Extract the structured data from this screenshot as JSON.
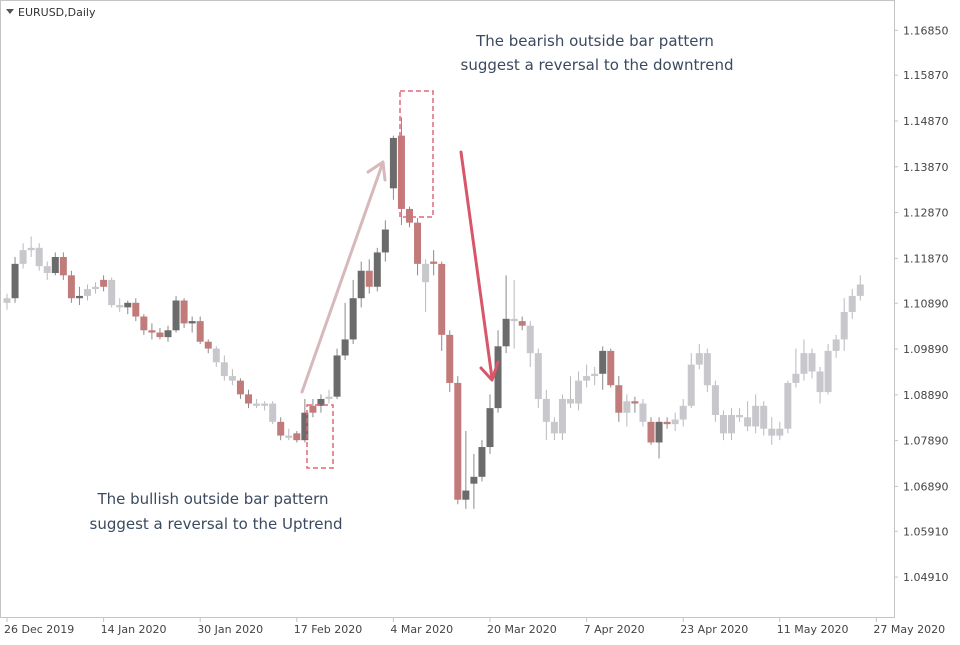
{
  "symbol_label": "EURUSD,Daily",
  "colors": {
    "background": "#ffffff",
    "border": "#c4c4c4",
    "axis_text": "#444444",
    "bull_dark": "#6b6b6b",
    "bear_red": "#c27b7b",
    "faded": "#c8c8cc",
    "wick": "#8a8a8a",
    "highlight_box": "#e0697a",
    "arrow_up": "#d7b8bb",
    "arrow_down": "#d9566a",
    "annotation_text": "#3b4a60"
  },
  "annotations": {
    "bullish_line1": "The bullish outside bar pattern",
    "bullish_line2": "suggest a reversal to the Uptrend",
    "bearish_line1": "The bearish outside bar pattern",
    "bearish_line2": "suggest a reversal to the downtrend"
  },
  "chart_data": {
    "type": "candlestick",
    "title": "EURUSD,Daily",
    "ylim": [
      1.0441,
      1.1725
    ],
    "y_ticks": [
      "1.16850",
      "1.15870",
      "1.14870",
      "1.13870",
      "1.12870",
      "1.11870",
      "1.10890",
      "1.09890",
      "1.08890",
      "1.07890",
      "1.06890",
      "1.05910",
      "1.04910"
    ],
    "x_ticks": [
      "26 Dec 2019",
      "14 Jan 2020",
      "30 Jan 2020",
      "17 Feb 2020",
      "4 Mar 2020",
      "20 Mar 2020",
      "7 Apr 2020",
      "23 Apr 2020",
      "11 May 2020",
      "27 May 2020"
    ],
    "x_tick_index": [
      0,
      12,
      24,
      36,
      48,
      60,
      72,
      84,
      96,
      108
    ],
    "grid": false,
    "candles": [
      {
        "o": 1.109,
        "h": 1.111,
        "l": 1.1075,
        "c": 1.11,
        "s": "faded"
      },
      {
        "o": 1.11,
        "h": 1.119,
        "l": 1.109,
        "c": 1.1175,
        "s": "dark"
      },
      {
        "o": 1.1175,
        "h": 1.122,
        "l": 1.1165,
        "c": 1.1205,
        "s": "faded"
      },
      {
        "o": 1.1205,
        "h": 1.1235,
        "l": 1.119,
        "c": 1.121,
        "s": "faded"
      },
      {
        "o": 1.121,
        "h": 1.122,
        "l": 1.116,
        "c": 1.117,
        "s": "faded"
      },
      {
        "o": 1.117,
        "h": 1.118,
        "l": 1.114,
        "c": 1.1155,
        "s": "faded"
      },
      {
        "o": 1.1155,
        "h": 1.12,
        "l": 1.115,
        "c": 1.119,
        "s": "dark"
      },
      {
        "o": 1.119,
        "h": 1.12,
        "l": 1.114,
        "c": 1.115,
        "s": "red"
      },
      {
        "o": 1.115,
        "h": 1.116,
        "l": 1.109,
        "c": 1.11,
        "s": "red"
      },
      {
        "o": 1.11,
        "h": 1.1125,
        "l": 1.1085,
        "c": 1.1105,
        "s": "dark"
      },
      {
        "o": 1.1105,
        "h": 1.113,
        "l": 1.1095,
        "c": 1.112,
        "s": "faded"
      },
      {
        "o": 1.112,
        "h": 1.1135,
        "l": 1.111,
        "c": 1.1125,
        "s": "faded"
      },
      {
        "o": 1.1125,
        "h": 1.115,
        "l": 1.1115,
        "c": 1.114,
        "s": "red"
      },
      {
        "o": 1.114,
        "h": 1.1145,
        "l": 1.108,
        "c": 1.1085,
        "s": "faded"
      },
      {
        "o": 1.1085,
        "h": 1.11,
        "l": 1.107,
        "c": 1.108,
        "s": "faded"
      },
      {
        "o": 1.108,
        "h": 1.1095,
        "l": 1.1065,
        "c": 1.109,
        "s": "dark"
      },
      {
        "o": 1.109,
        "h": 1.11,
        "l": 1.105,
        "c": 1.106,
        "s": "red"
      },
      {
        "o": 1.106,
        "h": 1.1065,
        "l": 1.102,
        "c": 1.103,
        "s": "red"
      },
      {
        "o": 1.103,
        "h": 1.1045,
        "l": 1.101,
        "c": 1.1025,
        "s": "red"
      },
      {
        "o": 1.1025,
        "h": 1.1035,
        "l": 1.101,
        "c": 1.1015,
        "s": "red"
      },
      {
        "o": 1.1015,
        "h": 1.104,
        "l": 1.1005,
        "c": 1.103,
        "s": "dark"
      },
      {
        "o": 1.103,
        "h": 1.1105,
        "l": 1.1025,
        "c": 1.1095,
        "s": "dark"
      },
      {
        "o": 1.1095,
        "h": 1.11,
        "l": 1.1035,
        "c": 1.1045,
        "s": "red"
      },
      {
        "o": 1.1045,
        "h": 1.106,
        "l": 1.1025,
        "c": 1.105,
        "s": "dark"
      },
      {
        "o": 1.105,
        "h": 1.106,
        "l": 1.1,
        "c": 1.1005,
        "s": "red"
      },
      {
        "o": 1.1005,
        "h": 1.101,
        "l": 1.098,
        "c": 1.099,
        "s": "red"
      },
      {
        "o": 1.099,
        "h": 1.0995,
        "l": 1.095,
        "c": 1.096,
        "s": "faded"
      },
      {
        "o": 1.096,
        "h": 1.0975,
        "l": 1.092,
        "c": 1.093,
        "s": "faded"
      },
      {
        "o": 1.093,
        "h": 1.0945,
        "l": 1.091,
        "c": 1.092,
        "s": "faded"
      },
      {
        "o": 1.092,
        "h": 1.0925,
        "l": 1.088,
        "c": 1.089,
        "s": "red"
      },
      {
        "o": 1.089,
        "h": 1.09,
        "l": 1.086,
        "c": 1.087,
        "s": "red"
      },
      {
        "o": 1.087,
        "h": 1.088,
        "l": 1.086,
        "c": 1.0865,
        "s": "faded"
      },
      {
        "o": 1.0865,
        "h": 1.0875,
        "l": 1.0855,
        "c": 1.087,
        "s": "faded"
      },
      {
        "o": 1.087,
        "h": 1.0875,
        "l": 1.0825,
        "c": 1.083,
        "s": "faded"
      },
      {
        "o": 1.083,
        "h": 1.084,
        "l": 1.079,
        "c": 1.08,
        "s": "red"
      },
      {
        "o": 1.08,
        "h": 1.0815,
        "l": 1.079,
        "c": 1.0795,
        "s": "faded"
      },
      {
        "o": 1.0805,
        "h": 1.081,
        "l": 1.0785,
        "c": 1.079,
        "s": "red"
      },
      {
        "o": 1.079,
        "h": 1.088,
        "l": 1.0785,
        "c": 1.085,
        "s": "dark"
      },
      {
        "o": 1.085,
        "h": 1.088,
        "l": 1.084,
        "c": 1.0865,
        "s": "red"
      },
      {
        "o": 1.0865,
        "h": 1.089,
        "l": 1.085,
        "c": 1.088,
        "s": "dark"
      },
      {
        "o": 1.088,
        "h": 1.09,
        "l": 1.087,
        "c": 1.0885,
        "s": "faded"
      },
      {
        "o": 1.0885,
        "h": 1.099,
        "l": 1.088,
        "c": 1.0975,
        "s": "dark"
      },
      {
        "o": 1.0975,
        "h": 1.109,
        "l": 1.0965,
        "c": 1.101,
        "s": "dark"
      },
      {
        "o": 1.101,
        "h": 1.114,
        "l": 1.1,
        "c": 1.11,
        "s": "dark"
      },
      {
        "o": 1.11,
        "h": 1.118,
        "l": 1.108,
        "c": 1.116,
        "s": "dark"
      },
      {
        "o": 1.116,
        "h": 1.1185,
        "l": 1.111,
        "c": 1.1125,
        "s": "red"
      },
      {
        "o": 1.1125,
        "h": 1.121,
        "l": 1.1115,
        "c": 1.12,
        "s": "dark"
      },
      {
        "o": 1.12,
        "h": 1.127,
        "l": 1.118,
        "c": 1.125,
        "s": "dark"
      },
      {
        "o": 1.134,
        "h": 1.1455,
        "l": 1.1315,
        "c": 1.145,
        "s": "dark"
      },
      {
        "o": 1.1455,
        "h": 1.1495,
        "l": 1.126,
        "c": 1.1295,
        "s": "red"
      },
      {
        "o": 1.1295,
        "h": 1.13,
        "l": 1.1255,
        "c": 1.1265,
        "s": "red"
      },
      {
        "o": 1.1265,
        "h": 1.1275,
        "l": 1.115,
        "c": 1.1175,
        "s": "red"
      },
      {
        "o": 1.1175,
        "h": 1.1185,
        "l": 1.107,
        "c": 1.1135,
        "s": "faded"
      },
      {
        "o": 1.118,
        "h": 1.1205,
        "l": 1.115,
        "c": 1.1175,
        "s": "red"
      },
      {
        "o": 1.1175,
        "h": 1.118,
        "l": 1.0985,
        "c": 1.102,
        "s": "red"
      },
      {
        "o": 1.102,
        "h": 1.103,
        "l": 1.0895,
        "c": 1.0915,
        "s": "red"
      },
      {
        "o": 1.0915,
        "h": 1.093,
        "l": 1.065,
        "c": 1.066,
        "s": "red"
      },
      {
        "o": 1.066,
        "h": 1.081,
        "l": 1.064,
        "c": 1.068,
        "s": "dark"
      },
      {
        "o": 1.0695,
        "h": 1.076,
        "l": 1.064,
        "c": 1.071,
        "s": "dark"
      },
      {
        "o": 1.071,
        "h": 1.079,
        "l": 1.07,
        "c": 1.0775,
        "s": "dark"
      },
      {
        "o": 1.0775,
        "h": 1.089,
        "l": 1.076,
        "c": 1.086,
        "s": "dark"
      },
      {
        "o": 1.086,
        "h": 1.103,
        "l": 1.085,
        "c": 1.0995,
        "s": "dark"
      },
      {
        "o": 1.0995,
        "h": 1.115,
        "l": 1.098,
        "c": 1.1055,
        "s": "dark"
      },
      {
        "o": 1.1055,
        "h": 1.114,
        "l": 1.099,
        "c": 1.105,
        "s": "faded"
      },
      {
        "o": 1.105,
        "h": 1.106,
        "l": 1.103,
        "c": 1.104,
        "s": "red"
      },
      {
        "o": 1.104,
        "h": 1.105,
        "l": 1.095,
        "c": 1.098,
        "s": "faded"
      },
      {
        "o": 1.098,
        "h": 1.099,
        "l": 1.086,
        "c": 1.088,
        "s": "faded"
      },
      {
        "o": 1.088,
        "h": 1.09,
        "l": 1.079,
        "c": 1.083,
        "s": "faded"
      },
      {
        "o": 1.083,
        "h": 1.084,
        "l": 1.079,
        "c": 1.0805,
        "s": "faded"
      },
      {
        "o": 1.0805,
        "h": 1.089,
        "l": 1.079,
        "c": 1.088,
        "s": "faded"
      },
      {
        "o": 1.088,
        "h": 1.093,
        "l": 1.086,
        "c": 1.087,
        "s": "faded"
      },
      {
        "o": 1.087,
        "h": 1.094,
        "l": 1.0855,
        "c": 1.092,
        "s": "faded"
      },
      {
        "o": 1.092,
        "h": 1.0955,
        "l": 1.0905,
        "c": 1.093,
        "s": "faded"
      },
      {
        "o": 1.093,
        "h": 1.095,
        "l": 1.091,
        "c": 1.0935,
        "s": "faded"
      },
      {
        "o": 1.0935,
        "h": 1.0995,
        "l": 1.09,
        "c": 1.0985,
        "s": "dark"
      },
      {
        "o": 1.0985,
        "h": 1.099,
        "l": 1.0905,
        "c": 1.091,
        "s": "red"
      },
      {
        "o": 1.091,
        "h": 1.093,
        "l": 1.083,
        "c": 1.085,
        "s": "red"
      },
      {
        "o": 1.085,
        "h": 1.089,
        "l": 1.082,
        "c": 1.0875,
        "s": "faded"
      },
      {
        "o": 1.0875,
        "h": 1.0885,
        "l": 1.085,
        "c": 1.087,
        "s": "red"
      },
      {
        "o": 1.087,
        "h": 1.088,
        "l": 1.082,
        "c": 1.083,
        "s": "faded"
      },
      {
        "o": 1.083,
        "h": 1.084,
        "l": 1.078,
        "c": 1.0785,
        "s": "red"
      },
      {
        "o": 1.0785,
        "h": 1.084,
        "l": 1.075,
        "c": 1.083,
        "s": "dark"
      },
      {
        "o": 1.083,
        "h": 1.084,
        "l": 1.0815,
        "c": 1.0825,
        "s": "red"
      },
      {
        "o": 1.0825,
        "h": 1.085,
        "l": 1.081,
        "c": 1.0835,
        "s": "faded"
      },
      {
        "o": 1.0835,
        "h": 1.088,
        "l": 1.082,
        "c": 1.0865,
        "s": "faded"
      },
      {
        "o": 1.0865,
        "h": 1.098,
        "l": 1.086,
        "c": 1.0955,
        "s": "faded"
      },
      {
        "o": 1.0955,
        "h": 1.1,
        "l": 1.0945,
        "c": 1.098,
        "s": "faded"
      },
      {
        "o": 1.098,
        "h": 1.099,
        "l": 1.0895,
        "c": 1.091,
        "s": "faded"
      },
      {
        "o": 1.091,
        "h": 1.092,
        "l": 1.083,
        "c": 1.0845,
        "s": "faded"
      },
      {
        "o": 1.0845,
        "h": 1.0855,
        "l": 1.079,
        "c": 1.0805,
        "s": "faded"
      },
      {
        "o": 1.0805,
        "h": 1.086,
        "l": 1.079,
        "c": 1.0845,
        "s": "faded"
      },
      {
        "o": 1.0845,
        "h": 1.086,
        "l": 1.083,
        "c": 1.084,
        "s": "faded"
      },
      {
        "o": 1.084,
        "h": 1.0875,
        "l": 1.081,
        "c": 1.082,
        "s": "faded"
      },
      {
        "o": 1.082,
        "h": 1.089,
        "l": 1.0805,
        "c": 1.0865,
        "s": "faded"
      },
      {
        "o": 1.0865,
        "h": 1.0875,
        "l": 1.08,
        "c": 1.0815,
        "s": "faded"
      },
      {
        "o": 1.0815,
        "h": 1.084,
        "l": 1.078,
        "c": 1.08,
        "s": "faded"
      },
      {
        "o": 1.08,
        "h": 1.083,
        "l": 1.079,
        "c": 1.0815,
        "s": "faded"
      },
      {
        "o": 1.0815,
        "h": 1.092,
        "l": 1.0805,
        "c": 1.0915,
        "s": "faded"
      },
      {
        "o": 1.0915,
        "h": 1.099,
        "l": 1.0905,
        "c": 1.0935,
        "s": "faded"
      },
      {
        "o": 1.0935,
        "h": 1.101,
        "l": 1.092,
        "c": 1.098,
        "s": "faded"
      },
      {
        "o": 1.098,
        "h": 1.099,
        "l": 1.0925,
        "c": 1.094,
        "s": "faded"
      },
      {
        "o": 1.094,
        "h": 1.095,
        "l": 1.087,
        "c": 1.0895,
        "s": "faded"
      },
      {
        "o": 1.0895,
        "h": 1.1,
        "l": 1.089,
        "c": 1.0985,
        "s": "faded"
      },
      {
        "o": 1.0985,
        "h": 1.102,
        "l": 1.097,
        "c": 1.101,
        "s": "faded"
      },
      {
        "o": 1.101,
        "h": 1.11,
        "l": 1.0985,
        "c": 1.107,
        "s": "faded"
      },
      {
        "o": 1.107,
        "h": 1.112,
        "l": 1.1055,
        "c": 1.1105,
        "s": "faded"
      },
      {
        "o": 1.1105,
        "h": 1.115,
        "l": 1.1095,
        "c": 1.113,
        "s": "faded"
      }
    ]
  }
}
